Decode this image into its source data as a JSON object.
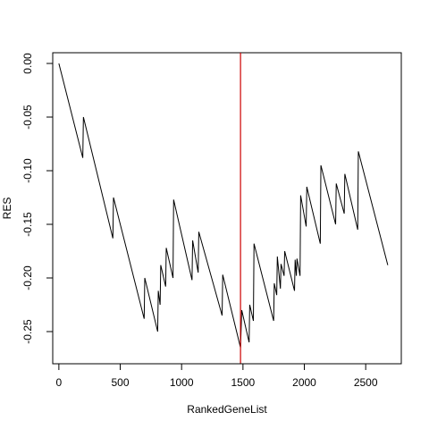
{
  "chart_data": {
    "type": "line",
    "title": "",
    "xlabel": "RankedGeneList",
    "ylabel": "RES",
    "xlim": [
      -50,
      2790
    ],
    "ylim": [
      -0.28,
      0.01
    ],
    "xticks": [
      0,
      500,
      1000,
      1500,
      2000,
      2500
    ],
    "yticks": [
      0.0,
      -0.05,
      -0.1,
      -0.15,
      -0.2,
      -0.25
    ],
    "ytick_labels": [
      "0.00",
      "-0.05",
      "-0.10",
      "-0.15",
      "-0.20",
      "-0.25"
    ],
    "grid": false,
    "legend": "none",
    "vline": {
      "x": 1480,
      "color": "#cc0000"
    },
    "series_color": "#000000",
    "series": [
      {
        "x": [
          0,
          195,
          200,
          440,
          445,
          695,
          700,
          805,
          810,
          825,
          830,
          870,
          875,
          930,
          935,
          1085,
          1090,
          1135,
          1140,
          1330,
          1335,
          1480,
          1490,
          1550,
          1555,
          1585,
          1590,
          1750,
          1755,
          1775,
          1780,
          1805,
          1810,
          1835,
          1840,
          1920,
          1925,
          1935,
          1940,
          1965,
          1970,
          2015,
          2020,
          2130,
          2135,
          2255,
          2260,
          2325,
          2330,
          2435,
          2440,
          2680
        ],
        "y": [
          0.0,
          -0.088,
          -0.05,
          -0.163,
          -0.125,
          -0.238,
          -0.2,
          -0.25,
          -0.212,
          -0.225,
          -0.188,
          -0.208,
          -0.172,
          -0.2,
          -0.127,
          -0.202,
          -0.165,
          -0.195,
          -0.157,
          -0.235,
          -0.197,
          -0.265,
          -0.23,
          -0.26,
          -0.225,
          -0.24,
          -0.168,
          -0.24,
          -0.205,
          -0.216,
          -0.18,
          -0.21,
          -0.187,
          -0.198,
          -0.175,
          -0.212,
          -0.183,
          -0.198,
          -0.182,
          -0.198,
          -0.123,
          -0.152,
          -0.115,
          -0.168,
          -0.095,
          -0.15,
          -0.112,
          -0.14,
          -0.103,
          -0.155,
          -0.082,
          -0.188
        ]
      }
    ]
  }
}
